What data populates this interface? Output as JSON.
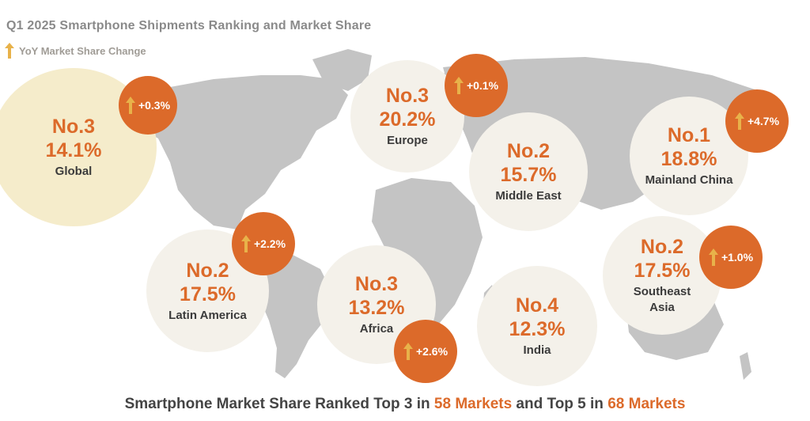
{
  "title": "Q1 2025 Smartphone Shipments Ranking and Market Share",
  "legend": {
    "label": "YoY Market Share Change",
    "icon": "up-arrow-icon"
  },
  "colors": {
    "accent": "#dc6a2a",
    "badge": "#dc6a2a",
    "bubble": "#f4f1ea",
    "global_bubble": "#f5eccb",
    "arrow": "#e8b24a",
    "map": "#c4c4c4"
  },
  "regions": [
    {
      "rank": "No.3",
      "share": "14.1%",
      "name": "Global",
      "change": "+0.3%"
    },
    {
      "rank": "No.3",
      "share": "20.2%",
      "name": "Europe",
      "change": "+0.1%"
    },
    {
      "rank": "No.2",
      "share": "15.7%",
      "name": "Middle East"
    },
    {
      "rank": "No.1",
      "share": "18.8%",
      "name": "Mainland China",
      "change": "+4.7%"
    },
    {
      "rank": "No.2",
      "share": "17.5%",
      "name": "Latin America",
      "change": "+2.2%"
    },
    {
      "rank": "No.3",
      "share": "13.2%",
      "name": "Africa",
      "change": "+2.6%"
    },
    {
      "rank": "No.4",
      "share": "12.3%",
      "name": "India"
    },
    {
      "rank": "No.2",
      "share": "17.5%",
      "name_line1": "Southeast",
      "name_line2": "Asia",
      "change": "+1.0%"
    }
  ],
  "footer": {
    "part1": "Smartphone Market Share Ranked Top 3 in ",
    "hl1": "58 Markets",
    "part2": " and Top 5 in ",
    "hl2": "68 Markets"
  }
}
